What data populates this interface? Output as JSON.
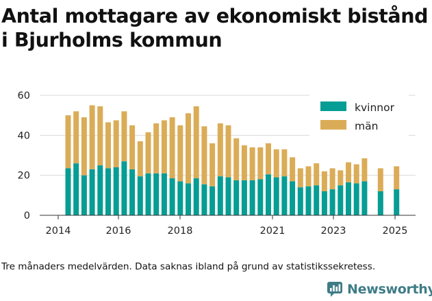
{
  "title": "Antal mottagare av ekonomiskt bistånd i Bjurholms kommun",
  "caption": "Tre månaders medelvärden. Data saknas ibland på grund av statistikssekretess.",
  "brand": {
    "name": "Newsworthy",
    "color": "#3f7c86"
  },
  "chart_data": {
    "type": "bar",
    "stacked": true,
    "x_ticks": [
      "2014",
      "2016",
      "2018",
      "2021",
      "2023",
      "2025"
    ],
    "y_ticks": [
      "0",
      "20",
      "40",
      "60"
    ],
    "ylim": [
      0,
      60
    ],
    "grid": true,
    "legend_position": "top-right",
    "series": [
      {
        "name": "kvinnor",
        "color": "#069d94",
        "values": [
          23.5,
          26,
          20,
          23,
          25,
          23.5,
          24,
          27,
          23,
          19.5,
          21,
          21,
          21,
          18.5,
          17,
          16,
          18.5,
          15.5,
          14.5,
          19.5,
          19,
          17.5,
          17.5,
          17.5,
          18,
          20.5,
          19,
          19.5,
          17,
          14,
          14.5,
          15,
          12,
          13,
          15,
          16.5,
          16,
          17,
          null,
          12,
          null,
          13
        ]
      },
      {
        "name": "män",
        "color": "#dbac57",
        "values": [
          26.5,
          26,
          29,
          32,
          29.5,
          23,
          23.5,
          25,
          22,
          17.5,
          20.5,
          25,
          26.5,
          30.5,
          28,
          35,
          36,
          29,
          21.5,
          26.5,
          26,
          21,
          17.5,
          16.5,
          16,
          15.5,
          14,
          13.5,
          12,
          9.5,
          10,
          11,
          10,
          10.5,
          7.5,
          10,
          9.5,
          11.5,
          null,
          11.5,
          null,
          11.5
        ]
      }
    ]
  }
}
